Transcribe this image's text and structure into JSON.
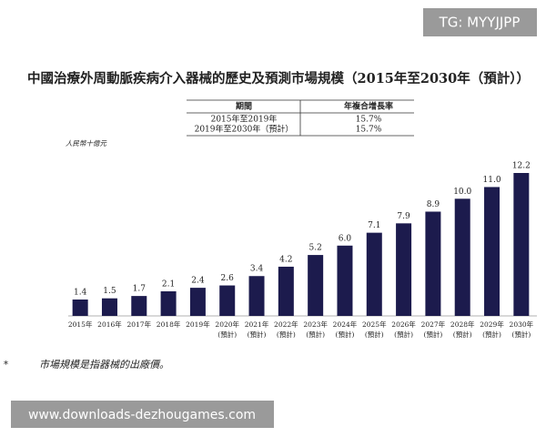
{
  "watermark_top": "TG: MYYJJPP",
  "watermark_bottom": "www.downloads-dezhougames.com",
  "table": {
    "header": [
      "期間",
      "年複合增長率"
    ],
    "rows": [
      [
        "2015年至2019年",
        "15.7%"
      ],
      [
        "2019年至2030年（預計）",
        "15.7%"
      ]
    ]
  },
  "footnote": {
    "marker": "*",
    "text": "市場規模是指器械的出廠價。"
  },
  "chart_data": {
    "type": "bar",
    "title": "中國治療外周動脈疾病介入器械的歷史及預測市場規模（2015年至2030年（預計））",
    "unit_label": "人民幣十億元",
    "categories": [
      "2015年",
      "2016年",
      "2017年",
      "2018年",
      "2019年",
      "2020年\n(預計)",
      "2021年\n(預計)",
      "2022年\n(預計)",
      "2023年\n(預計)",
      "2024年\n(預計)",
      "2025年\n(預計)",
      "2026年\n(預計)",
      "2027年\n(預計)",
      "2028年\n(預計)",
      "2029年\n(預計)",
      "2030年\n(預計)"
    ],
    "values": [
      1.4,
      1.5,
      1.7,
      2.1,
      2.4,
      2.6,
      3.4,
      4.2,
      5.2,
      6.0,
      7.1,
      7.9,
      8.9,
      10.0,
      11.0,
      12.2
    ],
    "value_labels": [
      "1.4",
      "1.5",
      "1.7",
      "2.1",
      "2.4",
      "2.6",
      "3.4",
      "4.2",
      "5.2",
      "6.0",
      "7.1",
      "7.9",
      "8.9",
      "10.0",
      "11.0",
      "12.2"
    ],
    "color": "#1c1b4d"
  }
}
